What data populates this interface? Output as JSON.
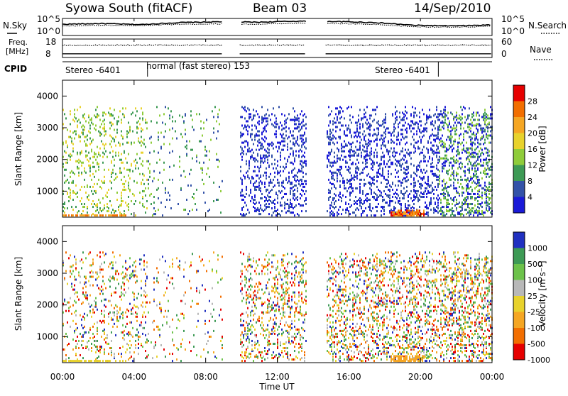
{
  "header": {
    "station": "Syowa South (fitACF)",
    "beam": "Beam 03",
    "date": "14/Sep/2010"
  },
  "strip_panels": {
    "nsky_label": "N.Sky",
    "nsearch_label": "N.Search",
    "noise_ticks_left": [
      "10^5",
      "10^0"
    ],
    "noise_ticks_right": [
      "10^5",
      "10^0"
    ],
    "freq_label_line1": "Freq.",
    "freq_label_line2": "[MHz]",
    "freq_ticks": [
      "18",
      "8"
    ],
    "nave_label": "Nave",
    "nave_ticks": [
      "60",
      "0"
    ],
    "cpid_label": "CPID",
    "cpid_segments": [
      {
        "label": "Stereo -6401",
        "start_hour": 0.0,
        "end_hour": 4.75
      },
      {
        "label": "normal (fast stereo) 153",
        "start_hour": 4.75,
        "end_hour": 21.0
      },
      {
        "label": "Stereo -6401",
        "start_hour": 21.0,
        "end_hour": 24.0
      }
    ]
  },
  "power_panel": {
    "ylabel": "Slant Range [km]",
    "colorbar_label": "Power [dB]",
    "colorbar_ticks": [
      "28",
      "24",
      "20",
      "16",
      "12",
      "8",
      "4"
    ],
    "colorbar_colors": [
      "#e60000",
      "#f26e00",
      "#f5a623",
      "#e8d22c",
      "#8fcc3a",
      "#3d9a55",
      "#3352a8",
      "#1a1ad8"
    ]
  },
  "velocity_panel": {
    "ylabel": "Slant Range [km]",
    "colorbar_label": "Velocity [m s⁻¹]",
    "colorbar_ticks": [
      "1000",
      "500",
      "100",
      "25",
      "-25",
      "-100",
      "-500",
      "-1000"
    ],
    "colorbar_colors": [
      "#2030c0",
      "#3d9a55",
      "#6cc24a",
      "#b8b8b8",
      "#e8d22c",
      "#f5a623",
      "#f26e00",
      "#e60000"
    ]
  },
  "xaxis": {
    "label": "Time UT",
    "ticks": [
      "00:00",
      "04:00",
      "08:00",
      "12:00",
      "16:00",
      "20:00",
      "00:00"
    ]
  },
  "chart_data": {
    "type": "heatmap",
    "x_range_hours": [
      0,
      24
    ],
    "y_range_km": [
      180,
      4500
    ],
    "y_ticks": [
      "1000",
      "2000",
      "3000",
      "4000"
    ],
    "data_gaps_hours": [
      [
        8.9,
        9.9
      ],
      [
        13.6,
        14.7
      ]
    ],
    "noise_series": [
      {
        "name": "N.Sky",
        "style": "solid",
        "level_log10": [
          3.3,
          3.5,
          3.2,
          3.8,
          4.0,
          3.9,
          4.2,
          4.1,
          3.8,
          3.0,
          2.8,
          3.1
        ]
      },
      {
        "name": "N.Search",
        "style": "dotted",
        "level_log10": [
          2.8,
          3.0,
          2.9,
          3.3,
          3.4,
          3.3,
          3.6,
          3.5,
          3.2,
          2.6,
          2.4,
          2.7
        ]
      }
    ],
    "freq_series": {
      "name": "Freq.",
      "typical_mhz": 10,
      "ylim": [
        8,
        18
      ]
    },
    "nave_series": {
      "name": "Nave",
      "typical": 40,
      "ylim": [
        0,
        60
      ]
    }
  }
}
